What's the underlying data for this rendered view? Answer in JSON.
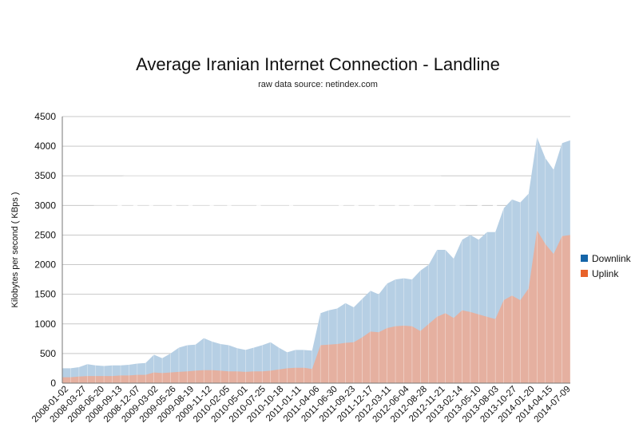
{
  "chart_data": {
    "type": "area",
    "title": "Average Iranian Internet Connection - Landline",
    "subtitle": "raw data source: netindex.com",
    "xlabel": "",
    "ylabel": "Kilobytes per second ( KBps )",
    "ylim": [
      0,
      4500
    ],
    "yticks": [
      0,
      500,
      1000,
      1500,
      2000,
      2500,
      3000,
      3500,
      4000,
      4500
    ],
    "x_tick_labels": [
      "2008-01-02",
      "2008-03-27",
      "2008-06-20",
      "2008-09-13",
      "2008-12-07",
      "2009-03-02",
      "2009-05-26",
      "2009-08-19",
      "2009-11-12",
      "2010-02-05",
      "2010-05-01",
      "2010-07-25",
      "2010-10-18",
      "2011-01-11",
      "2011-04-06",
      "2011-06-30",
      "2011-09-23",
      "2011-12-17",
      "2012-03-11",
      "2012-06-04",
      "2012-08-28",
      "2012-11-21",
      "2013-02-14",
      "2013-05-10",
      "2013-08-03",
      "2013-10-27",
      "2014-01-20",
      "2014-04-15",
      "2014-07-09"
    ],
    "grid": true,
    "legend_position": "right",
    "watermark": "project ainita",
    "series": [
      {
        "name": "Downlink",
        "color": "#1565a8",
        "fill": "#b6cfe4",
        "values": [
          250,
          250,
          270,
          320,
          300,
          290,
          300,
          300,
          310,
          330,
          340,
          480,
          420,
          500,
          600,
          640,
          650,
          760,
          700,
          660,
          640,
          590,
          560,
          600,
          640,
          690,
          600,
          520,
          560,
          560,
          550,
          1180,
          1230,
          1260,
          1350,
          1280,
          1420,
          1560,
          1500,
          1680,
          1750,
          1770,
          1750,
          1900,
          2000,
          2250,
          2250,
          2100,
          2420,
          2500,
          2420,
          2550,
          2550,
          2950,
          3100,
          3050,
          3200,
          4150,
          3800,
          3600,
          4050,
          4100
        ]
      },
      {
        "name": "Uplink",
        "color": "#e8622a",
        "fill": "#e5b0a0",
        "values": [
          100,
          100,
          110,
          120,
          120,
          120,
          120,
          130,
          130,
          140,
          140,
          180,
          170,
          180,
          190,
          200,
          210,
          220,
          220,
          210,
          200,
          200,
          190,
          200,
          200,
          210,
          230,
          250,
          260,
          260,
          240,
          640,
          650,
          660,
          680,
          690,
          770,
          870,
          860,
          930,
          960,
          970,
          960,
          880,
          1000,
          1120,
          1180,
          1100,
          1230,
          1200,
          1160,
          1120,
          1080,
          1400,
          1480,
          1400,
          1600,
          2580,
          2350,
          2180,
          2480,
          2500
        ]
      }
    ]
  }
}
